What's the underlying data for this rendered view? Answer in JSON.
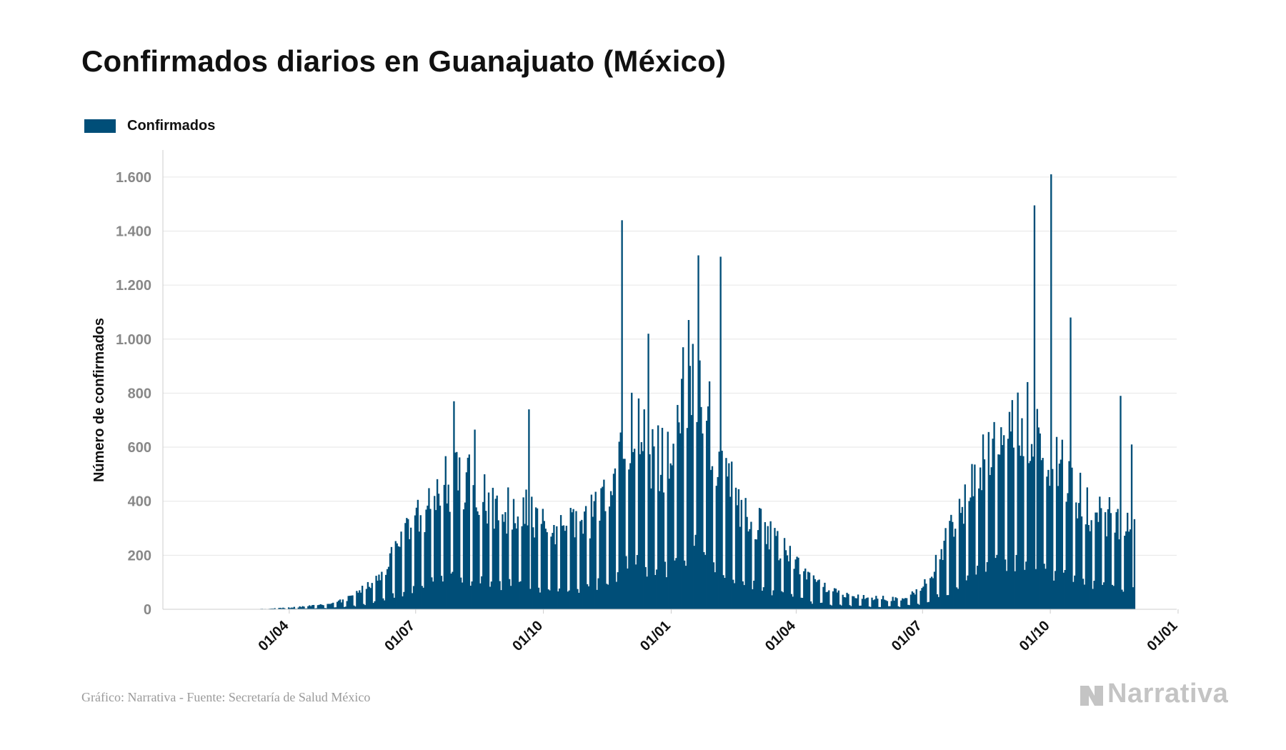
{
  "title": "Confirmados diarios en Guanajuato (México)",
  "legend": {
    "label": "Confirmados",
    "color": "#004e78"
  },
  "source": "Gráfico: Narrativa - Fuente: Secretaría de Salud México",
  "brand": {
    "name": "Narrativa",
    "icon": "narrativa-logo-icon"
  },
  "chart_data": {
    "type": "bar",
    "ylabel": "Número de confirmados",
    "ylim": [
      0,
      1700
    ],
    "yticks": [
      0,
      200,
      400,
      600,
      800,
      1000,
      1200,
      1400,
      1600
    ],
    "ytick_labels": [
      "0",
      "200",
      "400",
      "600",
      "800",
      "1.000",
      "1.200",
      "1.400",
      "1.600"
    ],
    "xlim": [
      "2020-01-01",
      "2021-12-31"
    ],
    "xticks": [
      "2020-04-01",
      "2020-07-01",
      "2020-10-01",
      "2021-01-01",
      "2021-04-01",
      "2021-07-01",
      "2021-10-01",
      "2022-01-01"
    ],
    "xtick_labels": [
      "01/04",
      "01/07",
      "01/10",
      "01/01",
      "01/04",
      "01/07",
      "01/10",
      "01/01"
    ],
    "grid": true,
    "legend_position": "top-left",
    "color": "#004e78",
    "series": [
      {
        "name": "Confirmados",
        "start_date": "2020-03-01",
        "end_date": "2021-11-30",
        "anchors": [
          [
            "2020-03-01",
            0
          ],
          [
            "2020-03-15",
            2
          ],
          [
            "2020-04-01",
            6
          ],
          [
            "2020-04-15",
            12
          ],
          [
            "2020-05-01",
            20
          ],
          [
            "2020-05-15",
            45
          ],
          [
            "2020-06-01",
            100
          ],
          [
            "2020-06-15",
            200
          ],
          [
            "2020-07-01",
            330
          ],
          [
            "2020-07-15",
            430
          ],
          [
            "2020-08-01",
            500
          ],
          [
            "2020-08-15",
            420
          ],
          [
            "2020-09-01",
            360
          ],
          [
            "2020-09-15",
            390
          ],
          [
            "2020-10-01",
            300
          ],
          [
            "2020-10-15",
            290
          ],
          [
            "2020-11-01",
            330
          ],
          [
            "2020-11-15",
            420
          ],
          [
            "2020-12-01",
            680
          ],
          [
            "2020-12-15",
            600
          ],
          [
            "2021-01-01",
            560
          ],
          [
            "2021-01-15",
            950
          ],
          [
            "2021-02-01",
            620
          ],
          [
            "2021-02-15",
            420
          ],
          [
            "2021-03-01",
            350
          ],
          [
            "2021-03-15",
            260
          ],
          [
            "2021-04-01",
            160
          ],
          [
            "2021-04-15",
            95
          ],
          [
            "2021-05-01",
            60
          ],
          [
            "2021-05-15",
            45
          ],
          [
            "2021-06-01",
            40
          ],
          [
            "2021-06-15",
            40
          ],
          [
            "2021-07-01",
            80
          ],
          [
            "2021-07-15",
            220
          ],
          [
            "2021-08-01",
            420
          ],
          [
            "2021-08-15",
            620
          ],
          [
            "2021-09-01",
            680
          ],
          [
            "2021-09-15",
            720
          ],
          [
            "2021-10-01",
            580
          ],
          [
            "2021-10-15",
            450
          ],
          [
            "2021-11-01",
            360
          ],
          [
            "2021-11-15",
            340
          ],
          [
            "2021-11-30",
            290
          ]
        ],
        "spikes": [
          [
            "2020-07-28",
            770
          ],
          [
            "2020-08-12",
            665
          ],
          [
            "2020-09-20",
            740
          ],
          [
            "2020-11-26",
            1440
          ],
          [
            "2020-12-15",
            1020
          ],
          [
            "2021-01-20",
            1310
          ],
          [
            "2021-02-05",
            1305
          ],
          [
            "2021-09-19",
            1495
          ],
          [
            "2021-10-01",
            1610
          ],
          [
            "2021-10-15",
            1080
          ],
          [
            "2021-11-20",
            790
          ],
          [
            "2021-11-28",
            610
          ]
        ]
      }
    ]
  }
}
